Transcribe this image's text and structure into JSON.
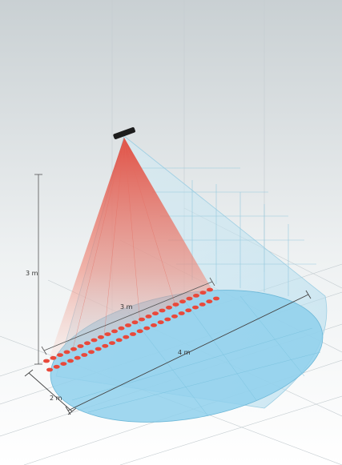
{
  "labels": {
    "height": "3 m",
    "near_width": "3 m",
    "long_width": "4 m",
    "depth": "2 m"
  },
  "colors": {
    "cone_fill": "#cfe7f3",
    "ellipse_fill": "#8fd0ec",
    "beam_top": "#e0483c",
    "beam_bottom": "#f7e1da",
    "led": "#e8493b",
    "sensor": "#1d1d1d",
    "grid": "#9ccfe0"
  },
  "led_rows": 2,
  "leds_per_row": 25
}
